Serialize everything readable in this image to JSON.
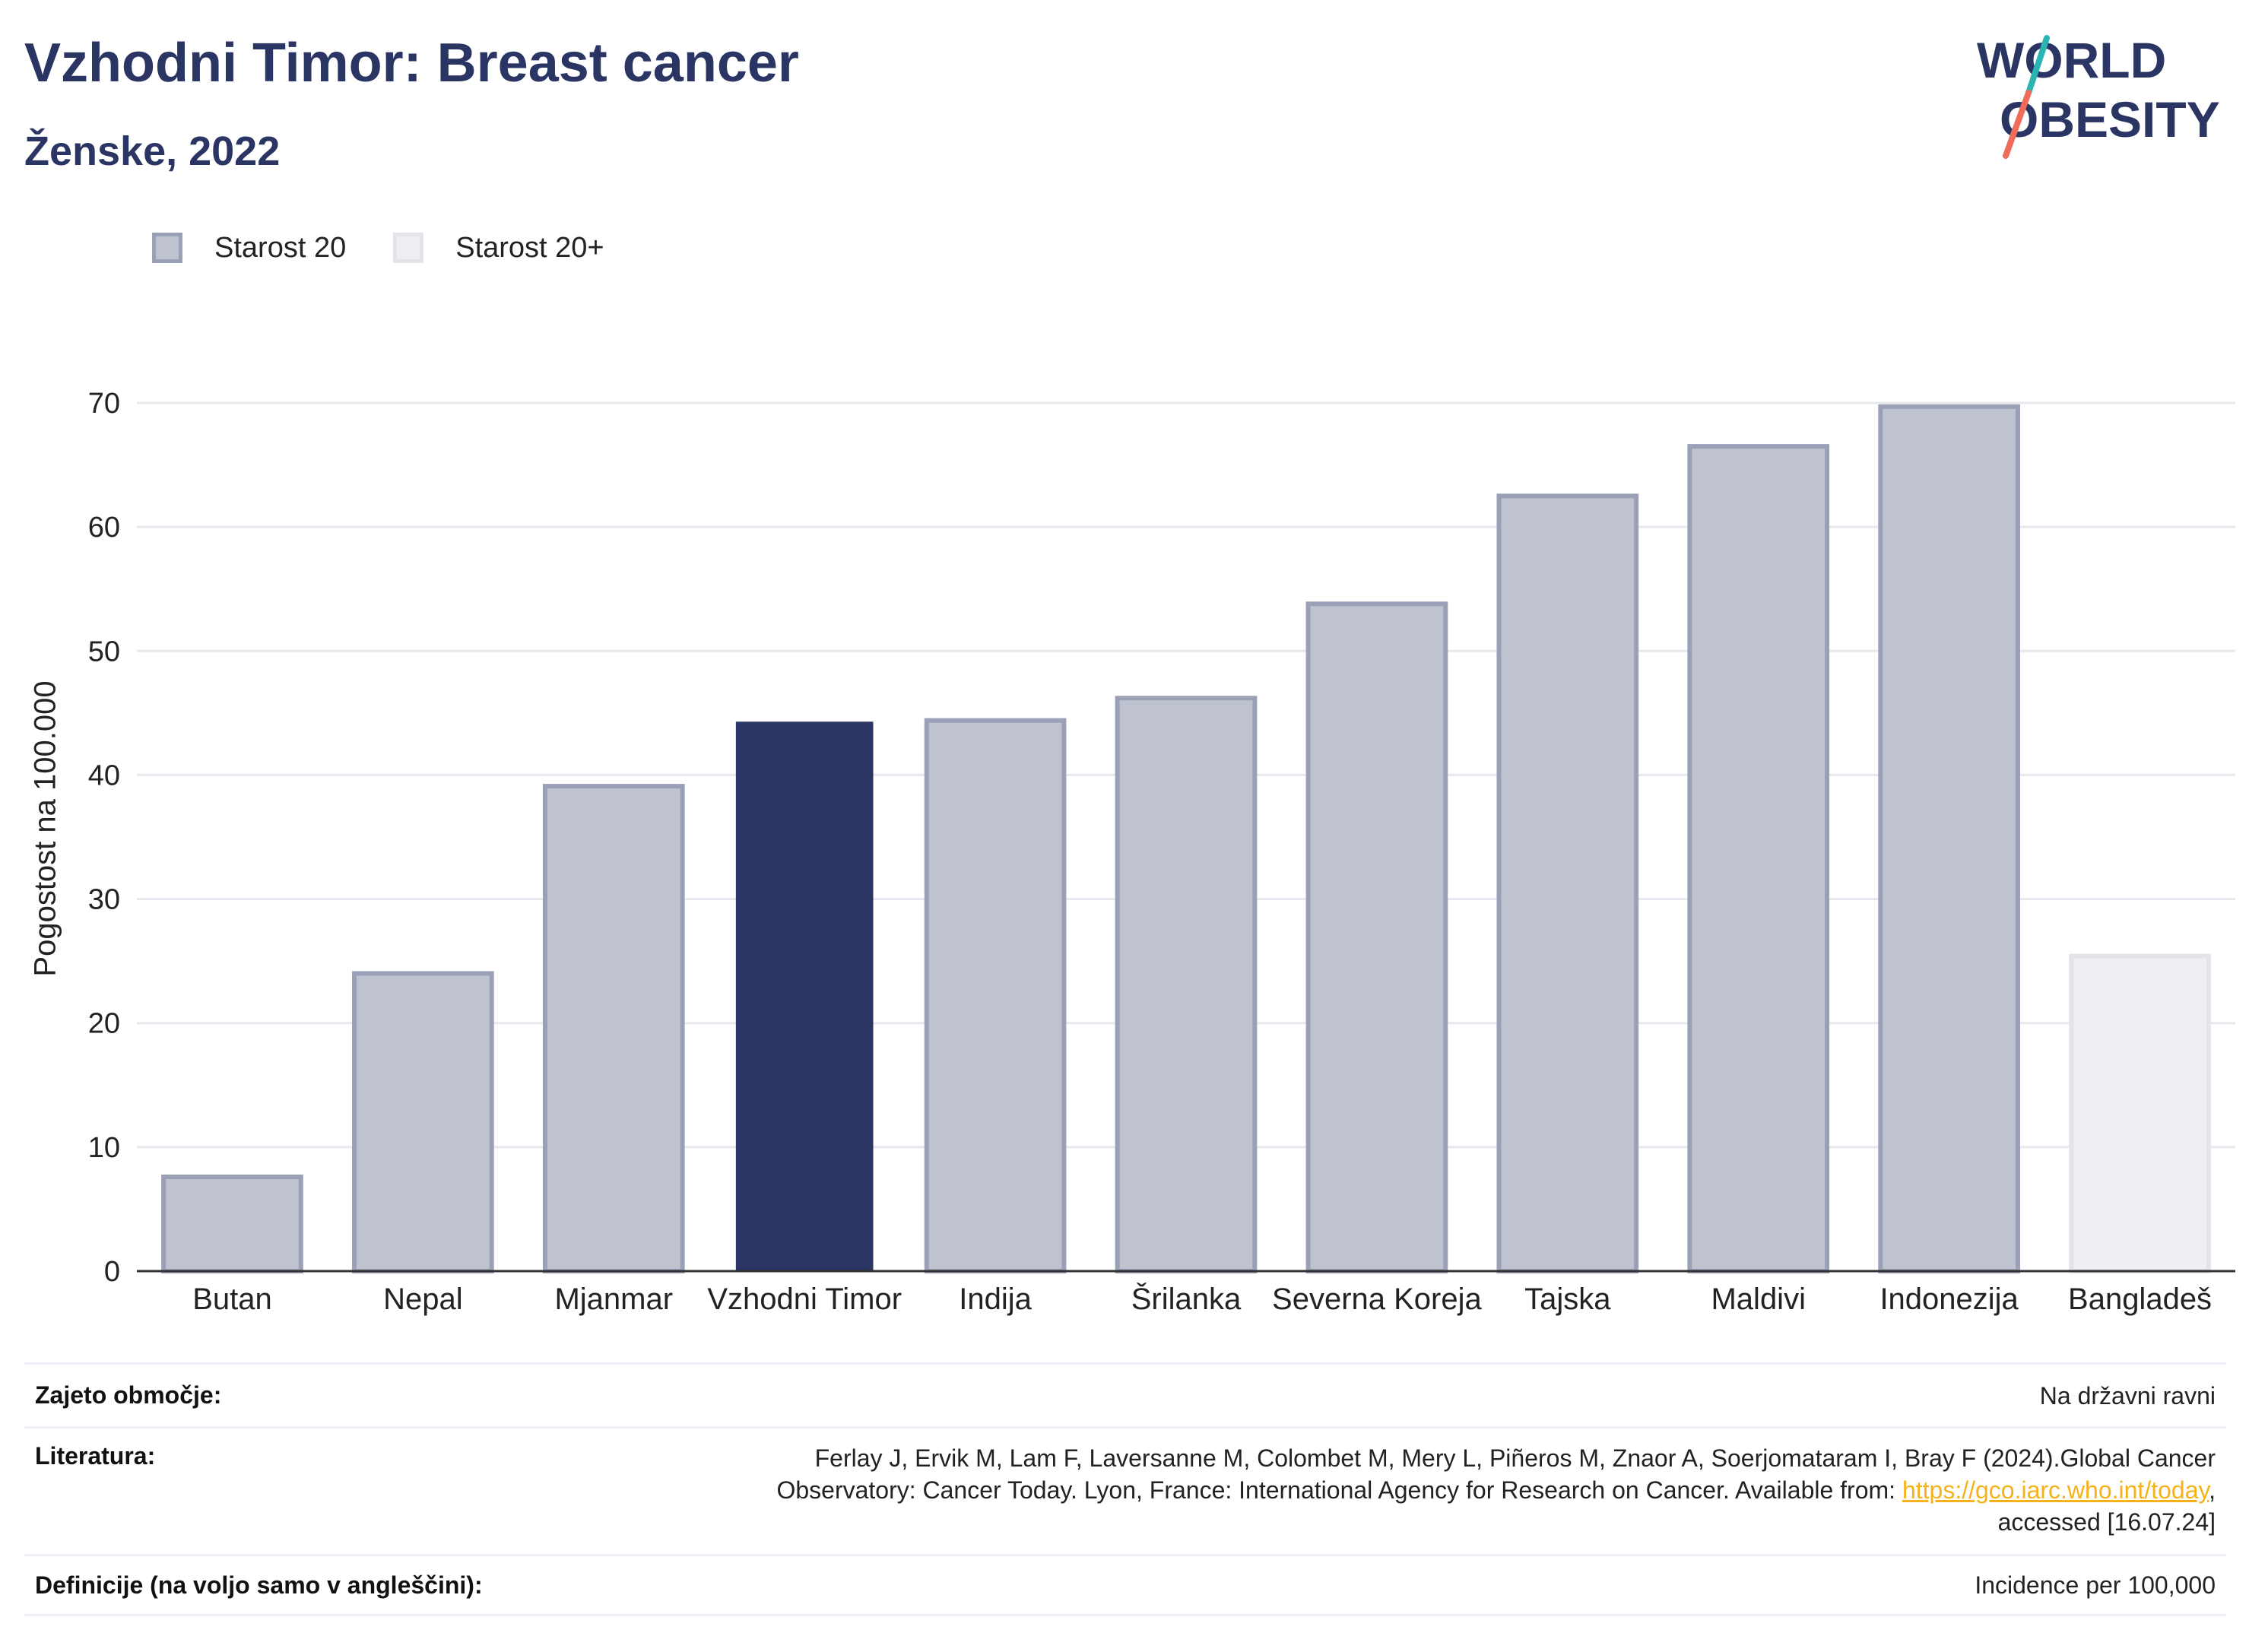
{
  "header": {
    "title": "Vzhodni Timor: Breast cancer",
    "subtitle": "Ženske, 2022"
  },
  "logo": {
    "line1": "WORLD",
    "line2": "OBESITY",
    "colors": {
      "text": "#2a3563",
      "slash_top": "#2ab5b3",
      "slash_bottom": "#ef6b5a"
    }
  },
  "legend": [
    {
      "label": "Starost 20",
      "color": "#bfc3d0",
      "border": "#9aa0b6"
    },
    {
      "label": "Starost 20+",
      "color": "#eeeff3",
      "border": "#e2e4ea"
    }
  ],
  "chart_data": {
    "type": "bar",
    "ylabel": "Pogostost na 100.000",
    "xlabel": "",
    "ylim": [
      0,
      70
    ],
    "yticks": [
      0,
      10,
      20,
      30,
      40,
      50,
      60,
      70
    ],
    "grid": true,
    "categories": [
      "Butan",
      "Nepal",
      "Mjanmar",
      "Vzhodni Timor",
      "Indija",
      "Šrilanka",
      "Severna Koreja",
      "Tajska",
      "Maldivi",
      "Indonezija",
      "Bangladeš"
    ],
    "values": [
      7.6,
      24.0,
      39.1,
      44.3,
      44.4,
      46.2,
      53.8,
      62.5,
      66.5,
      69.7,
      25.4
    ],
    "groups": [
      "Starost 20",
      "Starost 20",
      "Starost 20",
      "Starost 20",
      "Starost 20",
      "Starost 20",
      "Starost 20",
      "Starost 20",
      "Starost 20",
      "Starost 20",
      "Starost 20+"
    ],
    "highlight": "Vzhodni Timor",
    "colors": {
      "highlight": "#2a3563",
      "default": "#bfc3d0",
      "default_border": "#9aa0b6",
      "alt": "#eeeff3",
      "alt_border": "#e2e4ea"
    }
  },
  "info": [
    {
      "key": "Zajeto območje:",
      "value": "Na državni ravni"
    },
    {
      "key": "Literatura:",
      "value_line1": "Ferlay J, Ervik M, Lam F, Laversanne M, Colombet M, Mery L, Piñeros M, Znaor A, Soerjomataram I, Bray F (2024).Global Cancer",
      "value_line2_pre": "Observatory: Cancer Today. Lyon, France: International Agency for Research on Cancer. Available from: ",
      "link": "https://gco.iarc.who.int/today",
      "value_line2_post": ",",
      "value_line3": "accessed [16.07.24]"
    },
    {
      "key": "Definicije (na voljo samo v angleščini):",
      "value": "Incidence per 100,000"
    }
  ]
}
